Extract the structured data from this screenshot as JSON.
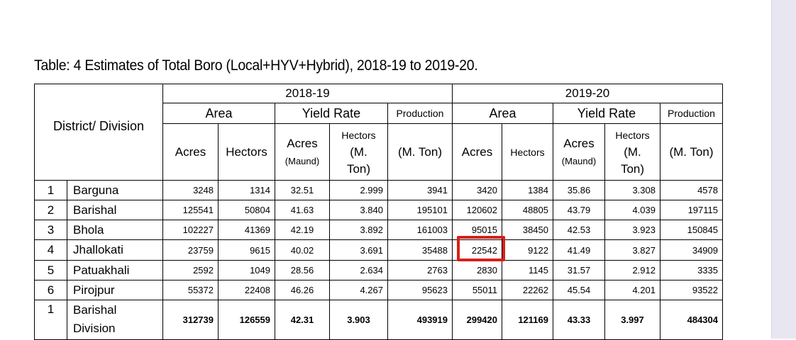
{
  "title": "Table: 4 Estimates of Total Boro (Local+HYV+Hybrid), 2018-19 to 2019-20.",
  "header": {
    "district_label": "District/ Division",
    "year1": "2018-19",
    "year2": "2019-20",
    "area": "Area",
    "yield_rate": "Yield Rate",
    "production": "Production",
    "acres": "Acres",
    "hectors": "Hectors",
    "yield_acres": "Acres",
    "yield_acres_unit": "(Maund)",
    "yield_hectors_1": "Hectors",
    "yield_hectors_2": "(M.",
    "yield_hectors_3": "Ton)",
    "production_unit": "(M. Ton)"
  },
  "rows": [
    {
      "no": "1",
      "name": "Barguna",
      "a1": "3248",
      "h1": "1314",
      "ya1": "32.51",
      "yh1": "2.999",
      "p1": "3941",
      "a2": "3420",
      "h2": "1384",
      "ya2": "35.86",
      "yh2": "3.308",
      "p2": "4578"
    },
    {
      "no": "2",
      "name": "Barishal",
      "a1": "125541",
      "h1": "50804",
      "ya1": "41.63",
      "yh1": "3.840",
      "p1": "195101",
      "a2": "120602",
      "h2": "48805",
      "ya2": "43.79",
      "yh2": "4.039",
      "p2": "197115"
    },
    {
      "no": "3",
      "name": "Bhola",
      "a1": "102227",
      "h1": "41369",
      "ya1": "42.19",
      "yh1": "3.892",
      "p1": "161003",
      "a2": "95015",
      "h2": "38450",
      "ya2": "42.53",
      "yh2": "3.923",
      "p2": "150845"
    },
    {
      "no": "4",
      "name": "Jhallokati",
      "a1": "23759",
      "h1": "9615",
      "ya1": "40.02",
      "yh1": "3.691",
      "p1": "35488",
      "a2": "22542",
      "h2": "9122",
      "ya2": "41.49",
      "yh2": "3.827",
      "p2": "34909"
    },
    {
      "no": "5",
      "name": "Patuakhali",
      "a1": "2592",
      "h1": "1049",
      "ya1": "28.56",
      "yh1": "2.634",
      "p1": "2763",
      "a2": "2830",
      "h2": "1145",
      "ya2": "31.57",
      "yh2": "2.912",
      "p2": "3335"
    },
    {
      "no": "6",
      "name": "Pirojpur",
      "a1": "55372",
      "h1": "22408",
      "ya1": "46.26",
      "yh1": "4.267",
      "p1": "95623",
      "a2": "55011",
      "h2": "22262",
      "ya2": "45.54",
      "yh2": "4.201",
      "p2": "93522"
    }
  ],
  "division": {
    "no": "1",
    "name_line1": "Barishal",
    "name_line2": "Division",
    "a1": "312739",
    "h1": "126559",
    "ya1": "42.31",
    "yh1": "3.903",
    "p1": "493919",
    "a2": "299420",
    "h2": "121169",
    "ya2": "43.33",
    "yh2": "3.997",
    "p2": "484304"
  },
  "highlight_color": "#d7201a",
  "sidebar_color": "#e8e6f1"
}
